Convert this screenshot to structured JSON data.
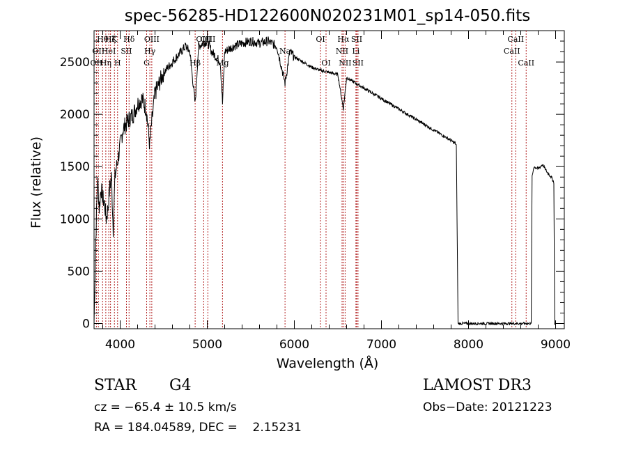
{
  "chart_data": {
    "type": "line",
    "title": "spec-56285-HD122600N020231M01_sp14-050.fits",
    "xlabel": "Wavelength (Å)",
    "ylabel": "Flux (relative)",
    "xlim": [
      3700,
      9100
    ],
    "ylim": [
      -50,
      2800
    ],
    "x_ticks": [
      4000,
      5000,
      6000,
      7000,
      8000,
      9000
    ],
    "y_ticks": [
      0,
      500,
      1000,
      1500,
      2000,
      2500
    ],
    "grid": false,
    "series": [
      {
        "name": "flux",
        "x": [
          3700,
          3720,
          3740,
          3760,
          3780,
          3800,
          3820,
          3840,
          3860,
          3880,
          3900,
          3920,
          3940,
          3960,
          3980,
          4000,
          4030,
          4060,
          4100,
          4150,
          4200,
          4250,
          4300,
          4340,
          4360,
          4400,
          4450,
          4500,
          4550,
          4600,
          4650,
          4700,
          4750,
          4800,
          4861,
          4900,
          4950,
          5000,
          5050,
          5100,
          5150,
          5175,
          5200,
          5300,
          5400,
          5500,
          5600,
          5700,
          5800,
          5893,
          5950,
          6000,
          6100,
          6200,
          6300,
          6400,
          6500,
          6563,
          6600,
          6700,
          6800,
          6900,
          7000,
          7100,
          7200,
          7300,
          7400,
          7500,
          7600,
          7700,
          7800,
          7850,
          7860,
          7880,
          7900,
          8000,
          8100,
          8200,
          8300,
          8400,
          8500,
          8600,
          8700,
          8720,
          8730,
          8750,
          8800,
          8850,
          8900,
          8950,
          8980,
          8990,
          9000
        ],
        "y": [
          0,
          800,
          1400,
          1100,
          1300,
          1200,
          1150,
          1000,
          1100,
          1300,
          1400,
          900,
          1400,
          1500,
          1600,
          1700,
          1850,
          1900,
          1950,
          2000,
          2100,
          2150,
          2050,
          1700,
          1900,
          2200,
          2300,
          2400,
          2450,
          2500,
          2550,
          2600,
          2650,
          2600,
          2100,
          2650,
          2680,
          2700,
          2600,
          2550,
          2500,
          2100,
          2600,
          2650,
          2680,
          2700,
          2680,
          2700,
          2650,
          2300,
          2600,
          2550,
          2500,
          2450,
          2420,
          2400,
          2380,
          2050,
          2350,
          2300,
          2250,
          2200,
          2150,
          2100,
          2050,
          2000,
          1950,
          1900,
          1850,
          1800,
          1750,
          1720,
          1700,
          0,
          0,
          0,
          0,
          0,
          0,
          0,
          0,
          0,
          0,
          0,
          1400,
          1500,
          1480,
          1520,
          1450,
          1400,
          1350,
          0,
          0
        ]
      }
    ],
    "line_markers": [
      {
        "wl": 3727,
        "labels": [
          "OII"
        ],
        "row": 2
      },
      {
        "wl": 3750,
        "labels": [
          "OII"
        ],
        "row": 1
      },
      {
        "wl": 3798,
        "labels": [
          "Hθ"
        ],
        "row": 0
      },
      {
        "wl": 3835,
        "labels": [
          "Hη"
        ],
        "row": 2
      },
      {
        "wl": 3869,
        "labels": [
          "HeI"
        ],
        "row": 1
      },
      {
        "wl": 3889,
        "labels": [
          "Hζ"
        ],
        "row": 0
      },
      {
        "wl": 3934,
        "labels": [
          "K"
        ],
        "row": 0
      },
      {
        "wl": 3970,
        "labels": [
          "H"
        ],
        "row": 2
      },
      {
        "wl": 4072,
        "labels": [
          "SII"
        ],
        "row": 1
      },
      {
        "wl": 4102,
        "labels": [
          "Hδ"
        ],
        "row": 0
      },
      {
        "wl": 4304,
        "labels": [
          "G"
        ],
        "row": 2
      },
      {
        "wl": 4341,
        "labels": [
          "Hγ"
        ],
        "row": 1
      },
      {
        "wl": 4363,
        "labels": [
          "OIII"
        ],
        "row": 0
      },
      {
        "wl": 4861,
        "labels": [
          "Hβ"
        ],
        "row": 2
      },
      {
        "wl": 4959,
        "labels": [
          "OIII"
        ],
        "row": 0
      },
      {
        "wl": 5007,
        "labels": [
          "OIII"
        ],
        "row": 0
      },
      {
        "wl": 5175,
        "labels": [
          "Mg"
        ],
        "row": 2
      },
      {
        "wl": 5893,
        "labels": [
          "Na"
        ],
        "row": 1
      },
      {
        "wl": 6300,
        "labels": [
          "OI"
        ],
        "row": 0
      },
      {
        "wl": 6364,
        "labels": [
          "OI"
        ],
        "row": 2
      },
      {
        "wl": 6548,
        "labels": [
          "NII"
        ],
        "row": 1
      },
      {
        "wl": 6563,
        "labels": [
          "Hα"
        ],
        "row": 0
      },
      {
        "wl": 6583,
        "labels": [
          "NII"
        ],
        "row": 2
      },
      {
        "wl": 6707,
        "labels": [
          "Li"
        ],
        "row": 1
      },
      {
        "wl": 6716,
        "labels": [
          "SII"
        ],
        "row": 0
      },
      {
        "wl": 6731,
        "labels": [
          "SII"
        ],
        "row": 2
      },
      {
        "wl": 8498,
        "labels": [
          "CaII"
        ],
        "row": 1
      },
      {
        "wl": 8542,
        "labels": [
          "CaII"
        ],
        "row": 0
      },
      {
        "wl": 8662,
        "labels": [
          "CaII"
        ],
        "row": 2
      }
    ]
  },
  "info": {
    "class_label": "STAR",
    "subclass": "G4",
    "survey": "LAMOST DR3",
    "cz_text": "cz = −65.4 ± 10.5 km/s",
    "obs_date_text": "Obs−Date: 20121223",
    "coords_text": "RA = 184.04589, DEC =    2.15231"
  }
}
